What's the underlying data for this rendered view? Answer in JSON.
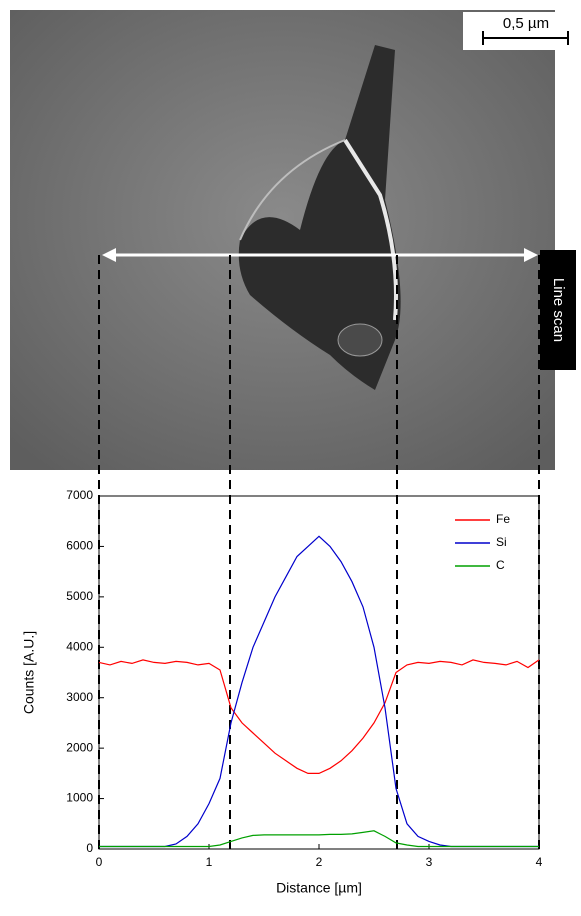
{
  "image": {
    "scale_bar": "0,5 µm",
    "line_label": "Line scan"
  },
  "chart_data": {
    "type": "line",
    "xlabel": "Distance [µm]",
    "ylabel": "Counts [A.U.]",
    "x": [
      0,
      0.1,
      0.2,
      0.3,
      0.4,
      0.5,
      0.6,
      0.7,
      0.8,
      0.9,
      1.0,
      1.1,
      1.2,
      1.3,
      1.4,
      1.5,
      1.6,
      1.7,
      1.8,
      1.9,
      2.0,
      2.1,
      2.2,
      2.3,
      2.4,
      2.5,
      2.6,
      2.7,
      2.8,
      2.9,
      3.0,
      3.1,
      3.2,
      3.3,
      3.4,
      3.5,
      3.6,
      3.7,
      3.8,
      3.9,
      4.0
    ],
    "series": [
      {
        "name": "Fe",
        "color": "#ff0000",
        "values": [
          3700,
          3650,
          3720,
          3680,
          3750,
          3700,
          3680,
          3720,
          3700,
          3650,
          3680,
          3550,
          2800,
          2500,
          2300,
          2100,
          1900,
          1750,
          1600,
          1500,
          1500,
          1600,
          1750,
          1950,
          2200,
          2500,
          2900,
          3500,
          3650,
          3700,
          3680,
          3720,
          3700,
          3650,
          3750,
          3700,
          3680,
          3650,
          3720,
          3600,
          3750
        ]
      },
      {
        "name": "Si",
        "color": "#0000cc",
        "values": [
          50,
          50,
          50,
          50,
          50,
          50,
          50,
          100,
          250,
          500,
          900,
          1400,
          2500,
          3300,
          4000,
          4500,
          5000,
          5400,
          5800,
          6000,
          6200,
          6000,
          5700,
          5300,
          4800,
          4000,
          2800,
          1200,
          500,
          250,
          150,
          80,
          50,
          50,
          50,
          50,
          50,
          50,
          50,
          50,
          50
        ]
      },
      {
        "name": "C",
        "color": "#00a000",
        "values": [
          50,
          50,
          50,
          50,
          50,
          50,
          50,
          50,
          50,
          50,
          50,
          80,
          150,
          220,
          270,
          280,
          280,
          280,
          280,
          280,
          280,
          290,
          290,
          300,
          330,
          360,
          250,
          120,
          80,
          50,
          50,
          50,
          50,
          50,
          50,
          50,
          50,
          50,
          50,
          50,
          50
        ]
      }
    ],
    "xlim": [
      0,
      4
    ],
    "xticks": [
      0,
      1,
      2,
      3,
      4
    ],
    "ylim": [
      0,
      7000
    ],
    "yticks": [
      0,
      1000,
      2000,
      3000,
      4000,
      5000,
      6000,
      7000
    ],
    "legend": "top-right"
  }
}
